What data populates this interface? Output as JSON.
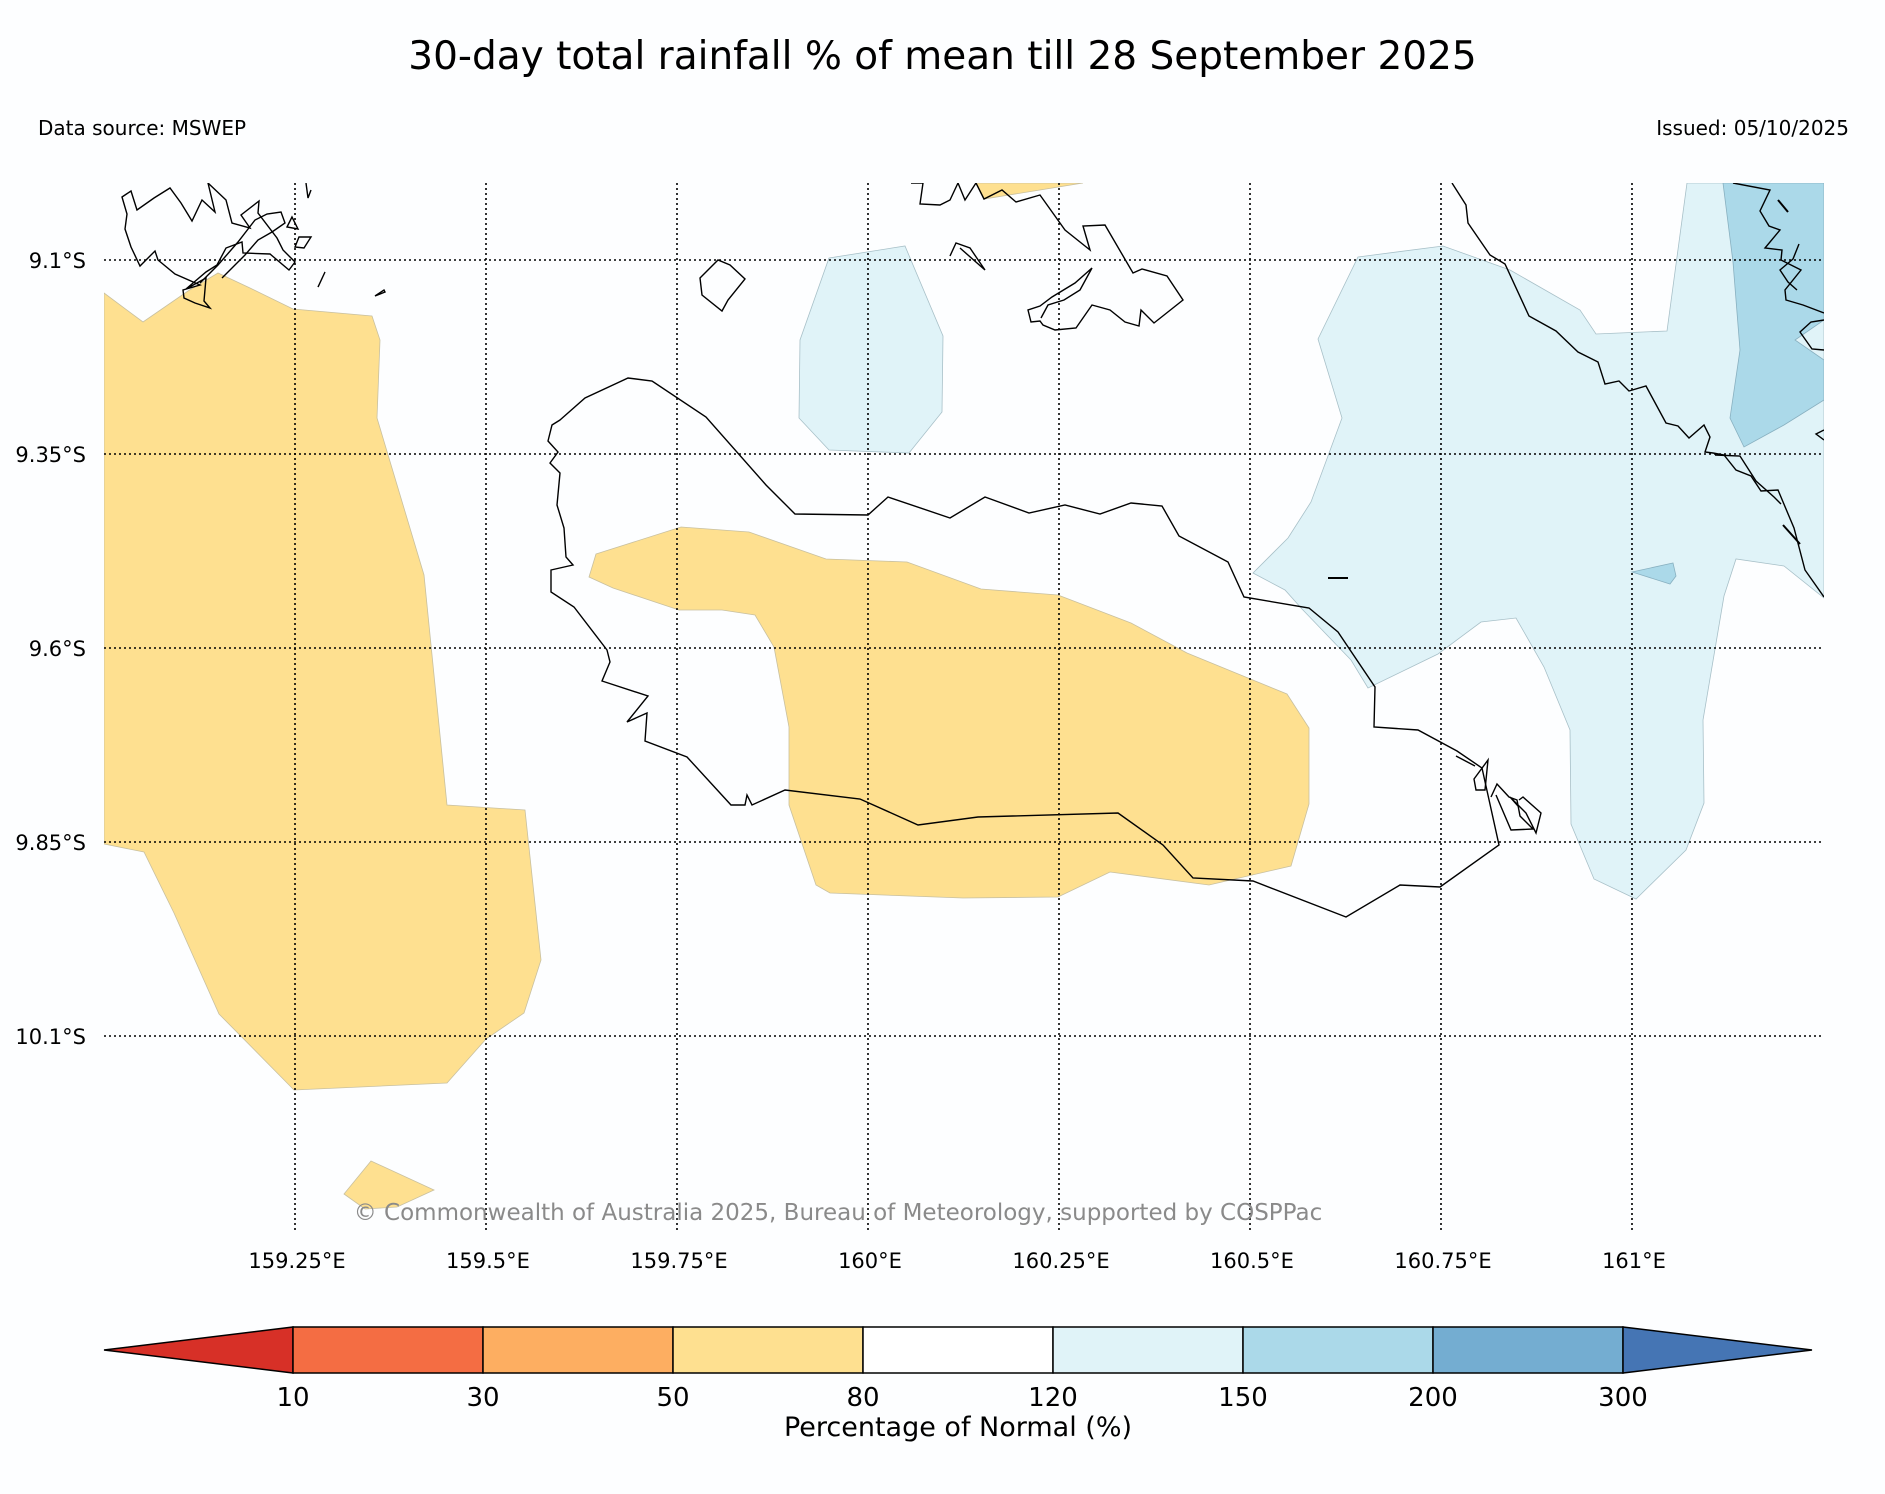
{
  "title": "30-day total rainfall % of mean till 28 September 2025",
  "data_source": "Data source: MSWEP",
  "issued": "Issued: 05/10/2025",
  "copyright": "© Commonwealth of Australia 2025, Bureau of Meteorology, supported by COSPPac",
  "map": {
    "latitudes": [
      "9.1°S",
      "9.35°S",
      "9.6°S",
      "9.85°S",
      "10.1°S"
    ],
    "longitudes": [
      "159.25°E",
      "159.5°E",
      "159.75°E",
      "160°E",
      "160.25°E",
      "160.5°E",
      "160.75°E",
      "161°E"
    ]
  },
  "colorbar": {
    "title": "Percentage of Normal (%)",
    "ticks": [
      "10",
      "30",
      "50",
      "80",
      "120",
      "150",
      "200",
      "300"
    ],
    "colors": [
      "#d73027",
      "#f46d43",
      "#fdae61",
      "#fee090",
      "#ffffff",
      "#e0f3f8",
      "#abd9e9",
      "#74add1",
      "#4575b4"
    ]
  },
  "colors": {
    "band_50_80": "#fee090",
    "band_120_150": "#e0f3f8",
    "band_150_200": "#abd9e9"
  }
}
